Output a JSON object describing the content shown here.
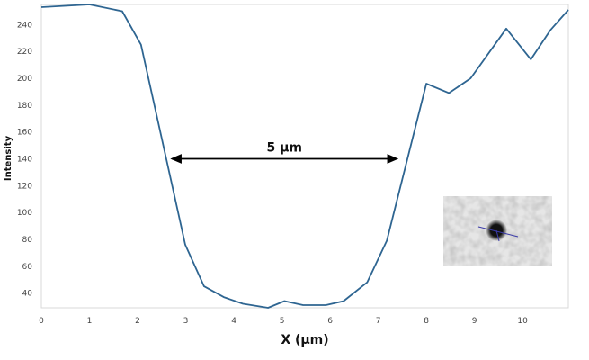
{
  "chart_data": {
    "type": "line",
    "xlabel": "X (µm)",
    "ylabel": "Intensity",
    "xlim": [
      0,
      10.95
    ],
    "ylim": [
      29,
      255
    ],
    "x_ticks": [
      "0",
      "1",
      "2",
      "3",
      "4",
      "5",
      "6",
      "7",
      "8",
      "9",
      "10"
    ],
    "y_ticks": [
      "40",
      "60",
      "80",
      "100",
      "120",
      "140",
      "160",
      "180",
      "200",
      "220",
      "240"
    ],
    "grid": false,
    "line_color": "#2e6591",
    "series": [
      {
        "x": [
          0,
          1.0,
          1.68,
          2.07,
          2.99,
          3.38,
          3.79,
          4.19,
          4.71,
          5.05,
          5.44,
          5.91,
          6.28,
          6.77,
          7.18,
          8.0,
          8.47,
          8.92,
          9.66,
          10.17,
          10.58,
          10.95
        ],
        "y": [
          253,
          255,
          250,
          225,
          76,
          45,
          37,
          32,
          29,
          34,
          31,
          31,
          34,
          48,
          79,
          196,
          189,
          200,
          237,
          214,
          236,
          251
        ]
      }
    ],
    "annotation": {
      "text": "5 µm",
      "x_start": 2.6,
      "x_end": 7.5,
      "y": 140
    },
    "inset": "microscopy-thumbnail"
  }
}
